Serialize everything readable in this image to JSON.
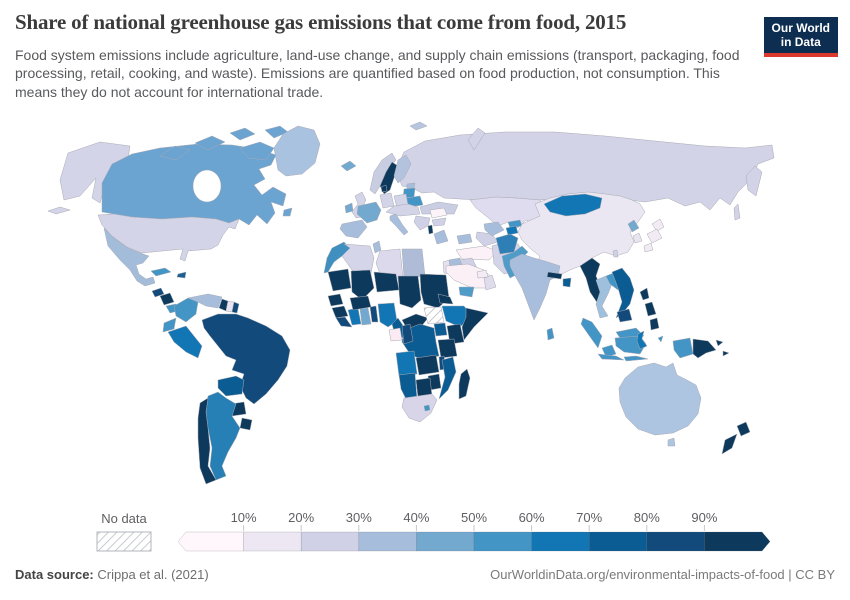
{
  "header": {
    "title": "Share of national greenhouse gas emissions that come from food, 2015",
    "subtitle": "Food system emissions include agriculture, land-use change, and supply chain emissions (transport, packaging, food processing, retail, cooking, and waste). Emissions are quantified based on food production, not consumption. This means they do not account for international trade.",
    "logo": {
      "line1": "Our World",
      "line2": "in Data"
    }
  },
  "legend": {
    "no_data_label": "No data",
    "ticks": [
      "10%",
      "20%",
      "30%",
      "40%",
      "50%",
      "60%",
      "70%",
      "80%",
      "90%"
    ]
  },
  "footer": {
    "source_label": "Data source:",
    "source_value": "Crippa et al. (2021)",
    "credit": "OurWorldinData.org/environmental-impacts-of-food | CC BY"
  },
  "colors": {
    "logo_navy": "#0d2e51",
    "logo_red": "#dc3a2f",
    "ocean": "#ffffff",
    "border_stroke": "#a8aab5"
  },
  "chart_data": {
    "type": "heatmap",
    "subtype": "choropleth-world-map",
    "title": "Share of national greenhouse gas emissions that come from food, 2015",
    "year": "2015",
    "unit": "% of national greenhouse gas emissions from food systems",
    "legend_position": "bottom",
    "no_data": {
      "label": "No data",
      "pattern": "diagonal-hatch"
    },
    "bins": [
      {
        "range": "0-10%",
        "color": "#fff7fb"
      },
      {
        "range": "10-20%",
        "color": "#ece7f2"
      },
      {
        "range": "20-30%",
        "color": "#d0d1e6"
      },
      {
        "range": "30-40%",
        "color": "#a6bddb"
      },
      {
        "range": "40-50%",
        "color": "#74a9cf"
      },
      {
        "range": "50-60%",
        "color": "#4295c5"
      },
      {
        "range": "60-70%",
        "color": "#1276b4"
      },
      {
        "range": "70-80%",
        "color": "#0b5c92"
      },
      {
        "range": "80-90%",
        "color": "#114a7b"
      },
      {
        "range": "90-100%",
        "color": "#0d3a5c"
      }
    ],
    "values": [
      {
        "id": "united-states",
        "country": "United States",
        "share": "20-30%",
        "color": "#d3d4e7"
      },
      {
        "id": "canada",
        "country": "Canada",
        "share": "40-50%",
        "color": "#6ba3d1"
      },
      {
        "id": "greenland",
        "country": "Greenland",
        "share": "30-40%",
        "color": "#a9c2e0"
      },
      {
        "id": "iceland",
        "country": "Iceland",
        "share": "40-50%",
        "color": "#74a9cf"
      },
      {
        "id": "mexico",
        "country": "Mexico",
        "share": "30-40%",
        "color": "#a3bcda"
      },
      {
        "id": "guatemala",
        "country": "Guatemala",
        "share": "80-90%",
        "color": "#114a7b"
      },
      {
        "id": "honduras-nicaragua",
        "country": "Honduras / Nicaragua",
        "share": "90-100%",
        "color": "#0d3a5c"
      },
      {
        "id": "costa-rica-panama",
        "country": "Costa Rica / Panama",
        "share": "50-60%",
        "color": "#4295c5"
      },
      {
        "id": "cuba",
        "country": "Cuba",
        "share": "50-60%",
        "color": "#4295c5"
      },
      {
        "id": "hispaniola",
        "country": "Haiti / Dominican Rep.",
        "share": "70-80%",
        "color": "#1f5f93"
      },
      {
        "id": "colombia",
        "country": "Colombia",
        "share": "50-60%",
        "color": "#4295c5"
      },
      {
        "id": "venezuela",
        "country": "Venezuela",
        "share": "30-40%",
        "color": "#a6bddb"
      },
      {
        "id": "guyana",
        "country": "Guyana",
        "share": "90-100%",
        "color": "#0d3a5c"
      },
      {
        "id": "suriname",
        "country": "Suriname",
        "share": "10-20%",
        "color": "#e8e3ef"
      },
      {
        "id": "french-guiana",
        "country": "French Guiana",
        "share": "80-90%",
        "color": "#114a7b"
      },
      {
        "id": "ecuador",
        "country": "Ecuador",
        "share": "50-60%",
        "color": "#4295c5"
      },
      {
        "id": "peru",
        "country": "Peru",
        "share": "60-70%",
        "color": "#1276b4"
      },
      {
        "id": "brazil",
        "country": "Brazil",
        "share": "80-90%",
        "color": "#114a7b"
      },
      {
        "id": "bolivia",
        "country": "Bolivia",
        "share": "70-80%",
        "color": "#0b5c92"
      },
      {
        "id": "paraguay",
        "country": "Paraguay",
        "share": "90-100%",
        "color": "#0d3a5c"
      },
      {
        "id": "uruguay",
        "country": "Uruguay",
        "share": "90-100%",
        "color": "#0d3a5c"
      },
      {
        "id": "argentina",
        "country": "Argentina",
        "share": "60-70%",
        "color": "#2680b6"
      },
      {
        "id": "chile",
        "country": "Chile",
        "share": "90-100%",
        "color": "#0d3a5c"
      },
      {
        "id": "united-kingdom",
        "country": "United Kingdom",
        "share": "20-30%",
        "color": "#d3d4e7"
      },
      {
        "id": "ireland",
        "country": "Ireland",
        "share": "40-50%",
        "color": "#74a9cf"
      },
      {
        "id": "norway",
        "country": "Norway",
        "share": "20-30%",
        "color": "#c9cde2"
      },
      {
        "id": "svalbard",
        "country": "Svalbard",
        "share": "30-40%",
        "color": "#b6c6de"
      },
      {
        "id": "sweden",
        "country": "Sweden",
        "share": "90-100%",
        "color": "#0d3a5c"
      },
      {
        "id": "finland",
        "country": "Finland",
        "share": "30-40%",
        "color": "#b3c3dd"
      },
      {
        "id": "denmark",
        "country": "Denmark",
        "share": "90-100%",
        "color": "#0d3a5c"
      },
      {
        "id": "germany",
        "country": "Germany",
        "share": "20-30%",
        "color": "#d3d4e7"
      },
      {
        "id": "poland",
        "country": "Poland",
        "share": "20-30%",
        "color": "#d3d4e7"
      },
      {
        "id": "central-europe",
        "country": "Czechia / Austria / Hungary",
        "share": "20-30%",
        "color": "#d3d4e7"
      },
      {
        "id": "france",
        "country": "France",
        "share": "40-50%",
        "color": "#74a9cf"
      },
      {
        "id": "spain",
        "country": "Spain / Portugal",
        "share": "30-40%",
        "color": "#a6bddb"
      },
      {
        "id": "italy",
        "country": "Italy",
        "share": "30-40%",
        "color": "#a8bedd"
      },
      {
        "id": "estonia",
        "country": "Estonia",
        "share": "30-40%",
        "color": "#a6bddb"
      },
      {
        "id": "latvia-lithuania",
        "country": "Latvia / Lithuania",
        "share": "50-60%",
        "color": "#4295c5"
      },
      {
        "id": "belarus",
        "country": "Belarus",
        "share": "50-60%",
        "color": "#4295c5"
      },
      {
        "id": "ukraine",
        "country": "Ukraine",
        "share": "20-30%",
        "color": "#c9cee3"
      },
      {
        "id": "romania",
        "country": "Romania",
        "share": "0-10%",
        "color": "#fdf4f9"
      },
      {
        "id": "balkans",
        "country": "Serbia / Bosnia / Croatia",
        "share": "20-30%",
        "color": "#d0d1e6"
      },
      {
        "id": "bulgaria",
        "country": "Bulgaria",
        "share": "20-30%",
        "color": "#d0d1e6"
      },
      {
        "id": "albania",
        "country": "Albania",
        "share": "90-100%",
        "color": "#0d3a5c"
      },
      {
        "id": "greece",
        "country": "Greece",
        "share": "30-40%",
        "color": "#a6bddb"
      },
      {
        "id": "russia",
        "country": "Russia",
        "share": "20-30%",
        "color": "#d2d3e6"
      },
      {
        "id": "turkey",
        "country": "Turkey",
        "share": "0-10%",
        "color": "#fcf1f7"
      },
      {
        "id": "syria",
        "country": "Syria",
        "share": "30-40%",
        "color": "#a6bddb"
      },
      {
        "id": "jordan-israel",
        "country": "Jordan / Israel / Lebanon",
        "share": "10-20%",
        "color": "#e5e1ee"
      },
      {
        "id": "iraq",
        "country": "Iraq",
        "share": "20-30%",
        "color": "#d0d1e6"
      },
      {
        "id": "iran",
        "country": "Iran",
        "share": "20-30%",
        "color": "#d4d4e8"
      },
      {
        "id": "saudi-arabia",
        "country": "Saudi Arabia",
        "share": "0-10%",
        "color": "#fbf0f6"
      },
      {
        "id": "yemen",
        "country": "Yemen",
        "share": "50-60%",
        "color": "#4f9cc9"
      },
      {
        "id": "oman",
        "country": "Oman",
        "share": "10-20%",
        "color": "#dfdcec"
      },
      {
        "id": "gulf-states",
        "country": "UAE / Qatar / Kuwait",
        "share": "0-10%",
        "color": "#f4ecf4"
      },
      {
        "id": "caucasus",
        "country": "Georgia / Armenia / Azerbaijan",
        "share": "30-40%",
        "color": "#a6bddb"
      },
      {
        "id": "kazakhstan",
        "country": "Kazakhstan",
        "share": "10-20%",
        "color": "#dedcee"
      },
      {
        "id": "turkmenistan",
        "country": "Turkmenistan",
        "share": "20-30%",
        "color": "#d0d1e6"
      },
      {
        "id": "uzbekistan",
        "country": "Uzbekistan",
        "share": "30-40%",
        "color": "#a6bddb"
      },
      {
        "id": "kyrgyzstan",
        "country": "Kyrgyzstan",
        "share": "50-60%",
        "color": "#4295c5"
      },
      {
        "id": "tajikistan",
        "country": "Tajikistan",
        "share": "60-70%",
        "color": "#1276b4"
      },
      {
        "id": "afghanistan",
        "country": "Afghanistan",
        "share": "60-70%",
        "color": "#2e7fb6"
      },
      {
        "id": "pakistan",
        "country": "Pakistan",
        "share": "50-60%",
        "color": "#4f9cc9"
      },
      {
        "id": "india",
        "country": "India",
        "share": "30-40%",
        "color": "#a9bedd"
      },
      {
        "id": "nepal",
        "country": "Nepal",
        "share": "90-100%",
        "color": "#0d3a5c"
      },
      {
        "id": "bangladesh",
        "country": "Bangladesh",
        "share": "70-80%",
        "color": "#0b5c92"
      },
      {
        "id": "sri-lanka",
        "country": "Sri Lanka",
        "share": "50-60%",
        "color": "#4295c5"
      },
      {
        "id": "china",
        "country": "China",
        "share": "10-20%",
        "color": "#ebe7f2"
      },
      {
        "id": "mongolia",
        "country": "Mongolia",
        "share": "60-70%",
        "color": "#1276b4"
      },
      {
        "id": "north-korea",
        "country": "North Korea",
        "share": "40-50%",
        "color": "#74a9cf"
      },
      {
        "id": "south-korea",
        "country": "South Korea",
        "share": "10-20%",
        "color": "#e9e4f0"
      },
      {
        "id": "japan",
        "country": "Japan",
        "share": "0-10%",
        "color": "#f3ebf3"
      },
      {
        "id": "taiwan",
        "country": "Taiwan",
        "share": "20-30%",
        "color": "#d0d1e6"
      },
      {
        "id": "myanmar",
        "country": "Myanmar",
        "share": "90-100%",
        "color": "#0d3a5c"
      },
      {
        "id": "thailand",
        "country": "Thailand",
        "share": "40-50%",
        "color": "#9fc0dc"
      },
      {
        "id": "laos",
        "country": "Laos",
        "share": "50-60%",
        "color": "#4295c5"
      },
      {
        "id": "vietnam",
        "country": "Vietnam",
        "share": "70-80%",
        "color": "#0b5c92"
      },
      {
        "id": "cambodia",
        "country": "Cambodia",
        "share": "80-90%",
        "color": "#114a7b"
      },
      {
        "id": "malaysia",
        "country": "Malaysia",
        "share": "50-60%",
        "color": "#4295c5"
      },
      {
        "id": "indonesia",
        "country": "Indonesia",
        "share": "50-60%",
        "color": "#4295c5"
      },
      {
        "id": "sulawesi",
        "country": "Indonesia (Sulawesi)",
        "share": "60-70%",
        "color": "#1276b4"
      },
      {
        "id": "philippines",
        "country": "Philippines",
        "share": "90-100%",
        "color": "#0d3a5c"
      },
      {
        "id": "papua-new-guinea",
        "country": "Papua New Guinea",
        "share": "90-100%",
        "color": "#0d3a5c"
      },
      {
        "id": "australia",
        "country": "Australia",
        "share": "30-40%",
        "color": "#aec5e1"
      },
      {
        "id": "new-zealand",
        "country": "New Zealand",
        "share": "90-100%",
        "color": "#0d3a5c"
      },
      {
        "id": "morocco",
        "country": "Morocco",
        "share": "50-60%",
        "color": "#3f8fc1"
      },
      {
        "id": "algeria",
        "country": "Algeria",
        "share": "20-30%",
        "color": "#d4d5e8"
      },
      {
        "id": "tunisia",
        "country": "Tunisia",
        "share": "30-40%",
        "color": "#a6bddb"
      },
      {
        "id": "libya",
        "country": "Libya",
        "share": "10-20%",
        "color": "#dcd9ec"
      },
      {
        "id": "egypt",
        "country": "Egypt",
        "share": "30-40%",
        "color": "#aebcd8"
      },
      {
        "id": "mauritania",
        "country": "Mauritania",
        "share": "90-100%",
        "color": "#0d3a5c"
      },
      {
        "id": "mali",
        "country": "Mali",
        "share": "90-100%",
        "color": "#0d3a5c"
      },
      {
        "id": "niger",
        "country": "Niger",
        "share": "90-100%",
        "color": "#0d3a5c"
      },
      {
        "id": "chad",
        "country": "Chad",
        "share": "90-100%",
        "color": "#0d3a5c"
      },
      {
        "id": "sudan",
        "country": "Sudan",
        "share": "90-100%",
        "color": "#0d3a5c"
      },
      {
        "id": "senegal",
        "country": "Senegal / Gambia",
        "share": "90-100%",
        "color": "#0d3a5c"
      },
      {
        "id": "guinea",
        "country": "Guinea",
        "share": "90-100%",
        "color": "#0d3a5c"
      },
      {
        "id": "sierra-leone-liberia",
        "country": "Sierra Leone / Liberia",
        "share": "80-90%",
        "color": "#114a7b"
      },
      {
        "id": "ivory-coast",
        "country": "Côte d'Ivoire",
        "share": "60-70%",
        "color": "#1276b4"
      },
      {
        "id": "ghana",
        "country": "Ghana",
        "share": "40-50%",
        "color": "#74a9cf"
      },
      {
        "id": "togo-benin",
        "country": "Togo / Benin",
        "share": "80-90%",
        "color": "#114a7b"
      },
      {
        "id": "burkina-faso",
        "country": "Burkina Faso",
        "share": "90-100%",
        "color": "#0d3a5c"
      },
      {
        "id": "nigeria",
        "country": "Nigeria",
        "share": "60-70%",
        "color": "#1276b4"
      },
      {
        "id": "cameroon",
        "country": "Cameroon",
        "share": "70-80%",
        "color": "#0b5c92"
      },
      {
        "id": "central-african-republic",
        "country": "Central African Republic",
        "share": "90-100%",
        "color": "#0d3a5c"
      },
      {
        "id": "south-sudan",
        "country": "South Sudan",
        "share": "No data",
        "color": "hatch"
      },
      {
        "id": "eritrea",
        "country": "Eritrea",
        "share": "90-100%",
        "color": "#0d3a5c"
      },
      {
        "id": "ethiopia",
        "country": "Ethiopia",
        "share": "60-70%",
        "color": "#1276b4"
      },
      {
        "id": "somalia",
        "country": "Somalia",
        "share": "90-100%",
        "color": "#0d3a5c"
      },
      {
        "id": "kenya",
        "country": "Kenya",
        "share": "90-100%",
        "color": "#0d3a5c"
      },
      {
        "id": "uganda",
        "country": "Uganda",
        "share": "70-80%",
        "color": "#0b5c92"
      },
      {
        "id": "dr-congo",
        "country": "Democratic Republic of Congo",
        "share": "70-80%",
        "color": "#0b5c92"
      },
      {
        "id": "congo",
        "country": "Congo",
        "share": "80-90%",
        "color": "#114a7b"
      },
      {
        "id": "gabon",
        "country": "Gabon / Equatorial Guinea",
        "share": "0-10%",
        "color": "#fbeaf2"
      },
      {
        "id": "tanzania",
        "country": "Tanzania",
        "share": "90-100%",
        "color": "#0d3a5c"
      },
      {
        "id": "angola",
        "country": "Angola",
        "share": "60-70%",
        "color": "#1276b4"
      },
      {
        "id": "zambia",
        "country": "Zambia",
        "share": "90-100%",
        "color": "#0d3a5c"
      },
      {
        "id": "malawi",
        "country": "Malawi",
        "share": "80-90%",
        "color": "#114a7b"
      },
      {
        "id": "mozambique",
        "country": "Mozambique",
        "share": "70-80%",
        "color": "#0b5c92"
      },
      {
        "id": "zimbabwe",
        "country": "Zimbabwe",
        "share": "90-100%",
        "color": "#0d3a5c"
      },
      {
        "id": "botswana",
        "country": "Botswana",
        "share": "90-100%",
        "color": "#0d3a5c"
      },
      {
        "id": "namibia",
        "country": "Namibia",
        "share": "70-80%",
        "color": "#0b5c92"
      },
      {
        "id": "south-africa",
        "country": "South Africa",
        "share": "20-30%",
        "color": "#d8d5e8"
      },
      {
        "id": "lesotho",
        "country": "Lesotho",
        "share": "50-60%",
        "color": "#4295c5"
      },
      {
        "id": "madagascar",
        "country": "Madagascar",
        "share": "90-100%",
        "color": "#0d3a5c"
      }
    ]
  }
}
